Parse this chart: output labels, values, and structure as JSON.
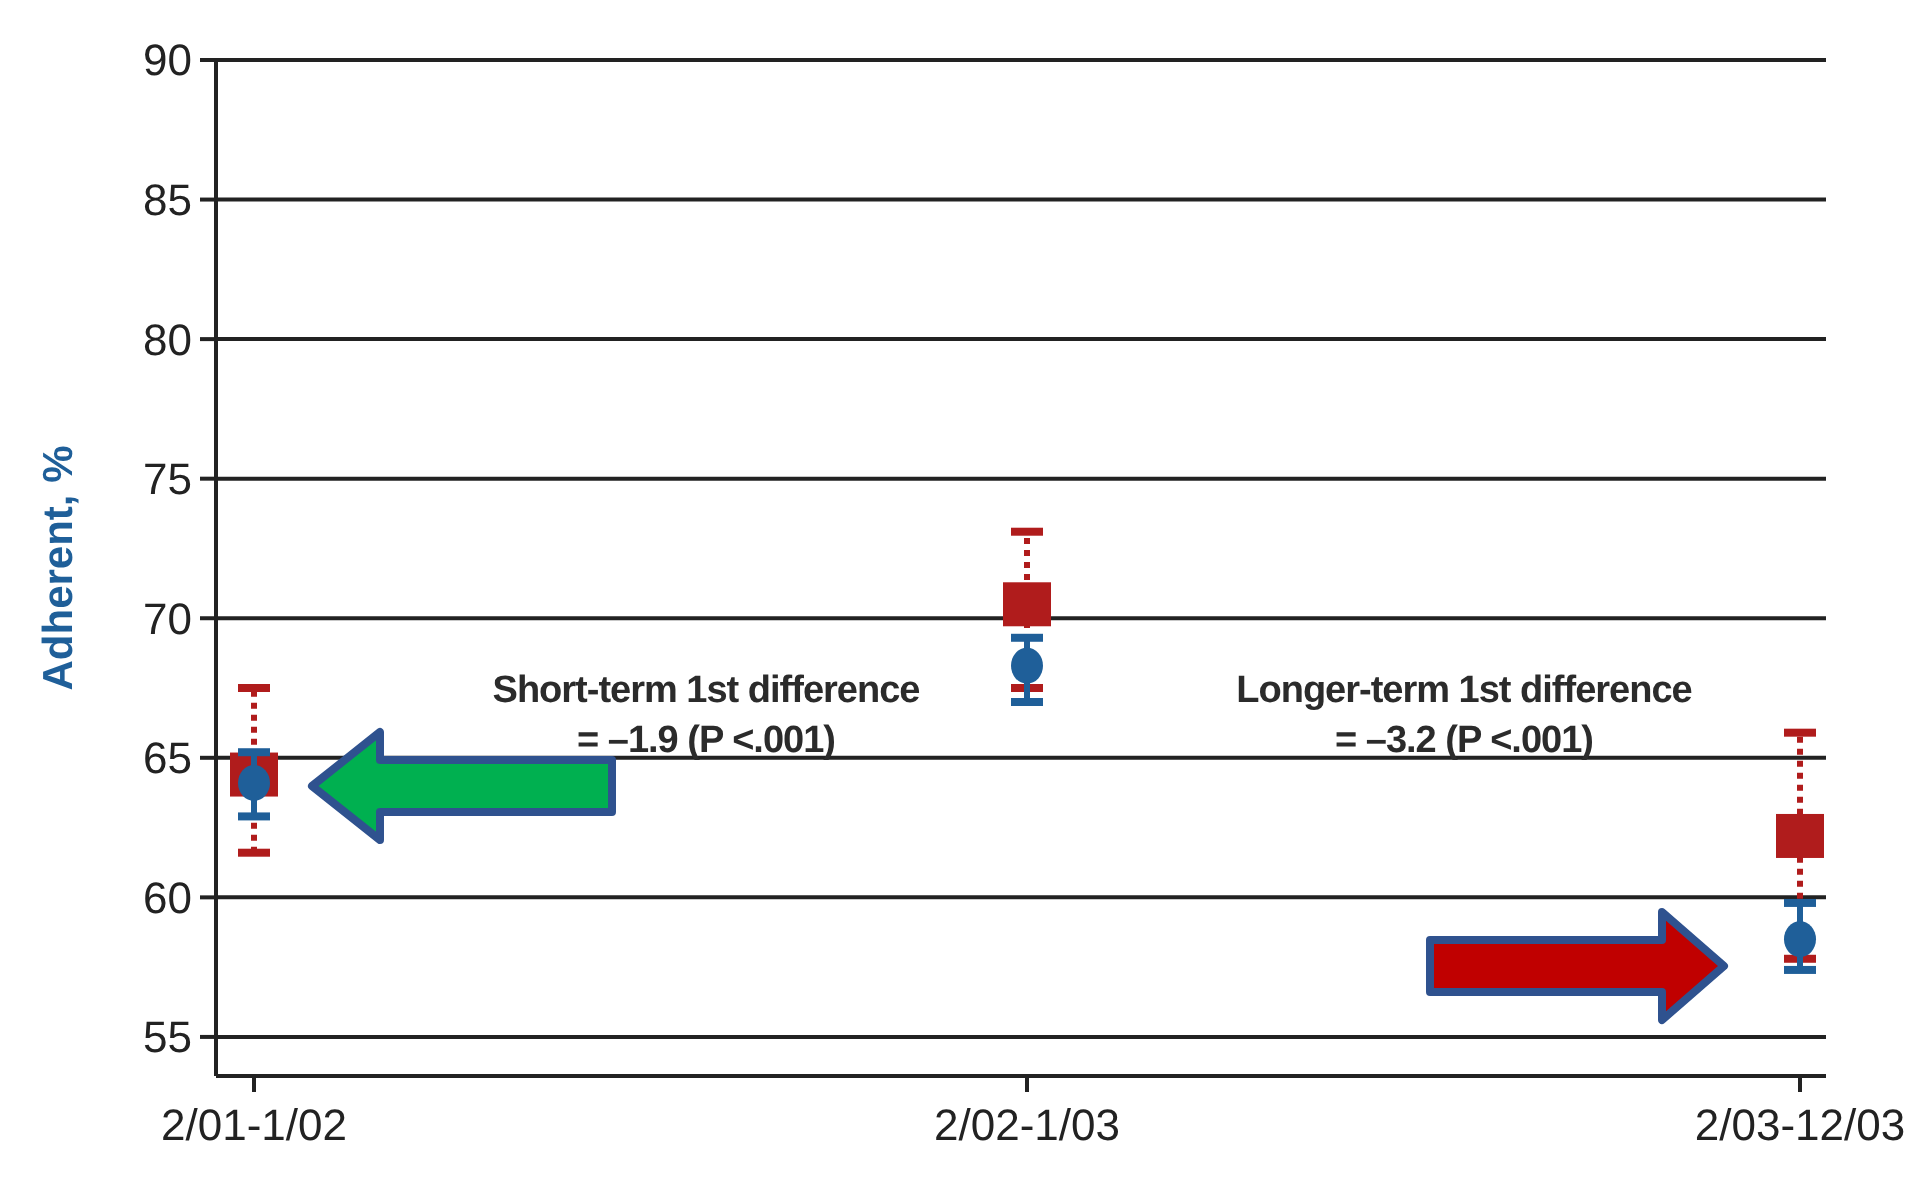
{
  "chart_data": {
    "type": "scatter",
    "ylabel": "Adherent, %",
    "categories": [
      "2/01-1/02",
      "2/02-1/03",
      "2/03-12/03"
    ],
    "ylim": [
      53.6,
      90
    ],
    "yticks": [
      55,
      60,
      65,
      70,
      75,
      80,
      85,
      90
    ],
    "grid": "y",
    "series": [
      {
        "color": "#b01c1c",
        "marker": "square",
        "line_style": "dotted",
        "values": [
          64.4,
          70.5,
          62.2
        ],
        "errors": [
          [
            61.6,
            67.5
          ],
          [
            67.5,
            73.1
          ],
          [
            57.8,
            65.9
          ]
        ]
      },
      {
        "color": "#1f5f99",
        "marker": "circle",
        "line_style": "solid",
        "values": [
          64.1,
          68.3,
          58.5
        ],
        "errors": [
          [
            62.9,
            65.2
          ],
          [
            67.0,
            69.3
          ],
          [
            57.4,
            59.8
          ]
        ]
      }
    ],
    "annotations": [
      {
        "text": "Short-term 1st difference\n= –1.9 (P <.001)"
      },
      {
        "text": "Longer-term 1st difference\n= –3.2 (P <.001)"
      }
    ]
  }
}
